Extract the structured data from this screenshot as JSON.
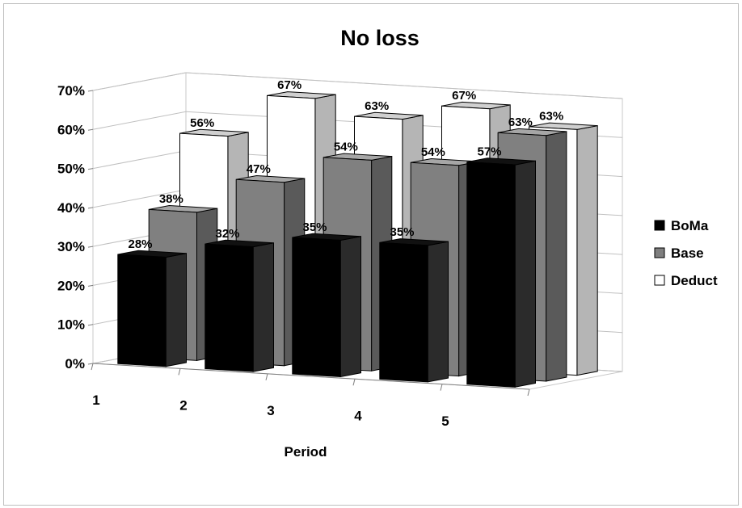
{
  "chart_data": {
    "type": "bar",
    "title": "No loss",
    "xlabel": "Period",
    "ylabel": "",
    "categories": [
      "1",
      "2",
      "3",
      "4",
      "5"
    ],
    "y_ticks": [
      "0%",
      "10%",
      "20%",
      "30%",
      "40%",
      "50%",
      "60%",
      "70%"
    ],
    "ylim": [
      0,
      70
    ],
    "value_suffix": "%",
    "grid": true,
    "legend_position": "right",
    "series": [
      {
        "name": "BoMa",
        "values": [
          28,
          32,
          35,
          35,
          57
        ],
        "color": "#000000"
      },
      {
        "name": "Base",
        "values": [
          38,
          47,
          54,
          54,
          63
        ],
        "color": "#7f7f7f"
      },
      {
        "name": "Deduct",
        "values": [
          56,
          67,
          63,
          67,
          63
        ],
        "color": "#ffffff"
      }
    ]
  }
}
